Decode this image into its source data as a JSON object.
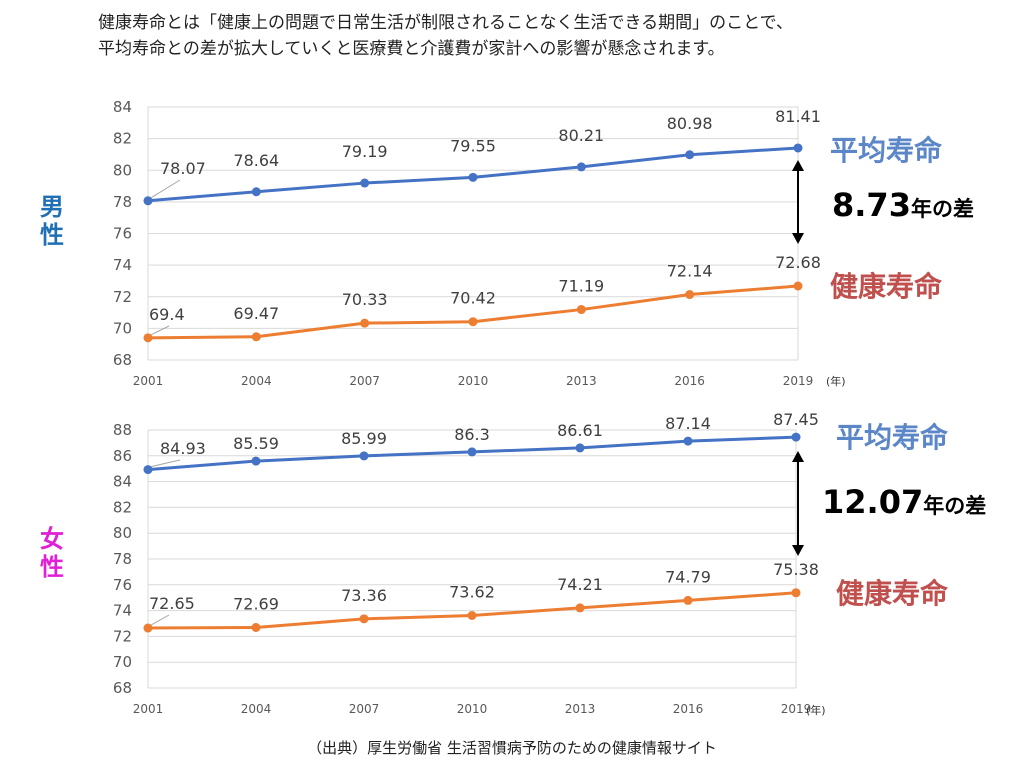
{
  "intro_lines": [
    "健康寿命とは「健康上の問題で日常生活が制限されることなく生活できる期間」のことで、",
    "平均寿命との差が拡大していくと医療費と介護費が家計への影響が懸念されます。"
  ],
  "source": "（出典）厚生労働省 生活習慣病予防のための健康情報サイト",
  "colors": {
    "avg": "#4472C4",
    "healthy": "#ED7D31",
    "male_label": "#1F6FB4",
    "female_label": "#E020D8",
    "avg_label": "#5B86C7",
    "healthy_label": "#C0504D",
    "grid": "#D9D9D9",
    "axis_text": "#595959"
  },
  "chart_data": [
    {
      "type": "line",
      "panel_label": [
        "男",
        "性"
      ],
      "categories": [
        "2001",
        "2004",
        "2007",
        "2010",
        "2013",
        "2016",
        "2019"
      ],
      "unit": "(年)",
      "ylim": [
        68,
        84
      ],
      "ystep": 2,
      "grid": true,
      "series": [
        {
          "name": "平均寿命",
          "key": "avg",
          "values": [
            78.07,
            78.64,
            79.19,
            79.55,
            80.21,
            80.98,
            81.41
          ]
        },
        {
          "name": "健康寿命",
          "key": "healthy",
          "values": [
            69.4,
            69.47,
            70.33,
            70.42,
            71.19,
            72.14,
            72.68
          ]
        }
      ],
      "gap_value": "8.73",
      "gap_suffix": "年の差"
    },
    {
      "type": "line",
      "panel_label": [
        "女",
        "性"
      ],
      "categories": [
        "2001",
        "2004",
        "2007",
        "2010",
        "2013",
        "2016",
        "2019"
      ],
      "unit": "(年)",
      "ylim": [
        68,
        88
      ],
      "ystep": 2,
      "grid": true,
      "series": [
        {
          "name": "平均寿命",
          "key": "avg",
          "values": [
            84.93,
            85.59,
            85.99,
            86.3,
            86.61,
            87.14,
            87.45
          ]
        },
        {
          "name": "健康寿命",
          "key": "healthy",
          "values": [
            72.65,
            72.69,
            73.36,
            73.62,
            74.21,
            74.79,
            75.38
          ]
        }
      ],
      "gap_value": "12.07",
      "gap_suffix": "年の差"
    }
  ]
}
